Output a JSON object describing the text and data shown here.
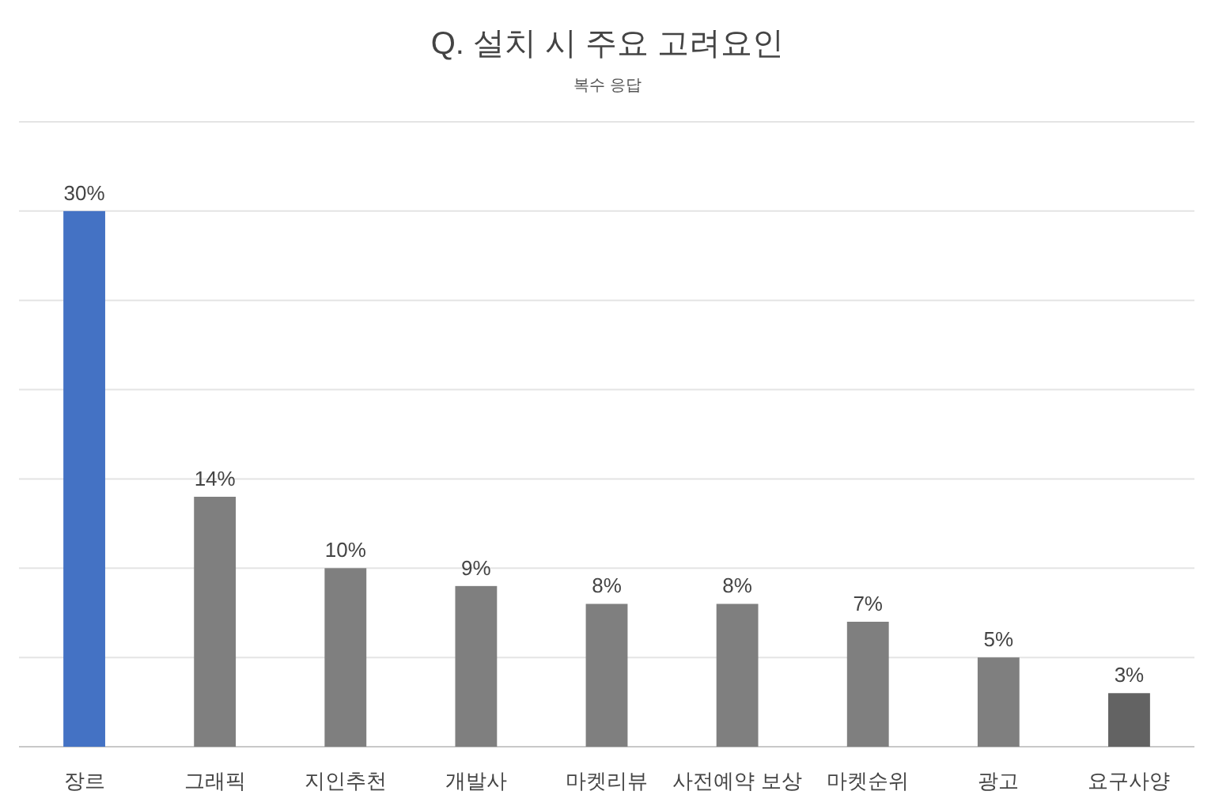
{
  "chart_data": {
    "type": "bar",
    "title": "Q. 설치 시 주요 고려요인",
    "subtitle": "복수 응답",
    "categories": [
      "장르",
      "그래픽",
      "지인추천",
      "개발사",
      "마켓리뷰",
      "사전예약 보상",
      "마켓순위",
      "광고",
      "요구사양"
    ],
    "values": [
      30,
      14,
      10,
      9,
      8,
      8,
      7,
      5,
      3
    ],
    "colors": [
      "#4472c4",
      "#7f7f7f",
      "#7f7f7f",
      "#7f7f7f",
      "#7f7f7f",
      "#7f7f7f",
      "#7f7f7f",
      "#7f7f7f",
      "#636363"
    ],
    "value_labels": [
      "30%",
      "14%",
      "10%",
      "9%",
      "8%",
      "8%",
      "7%",
      "5%",
      "3%"
    ],
    "ylim": [
      0,
      35
    ],
    "yticks": [
      {
        "value": 0,
        "label": null
      },
      {
        "value": 5,
        "label": null
      },
      {
        "value": 10,
        "label": null
      },
      {
        "value": 15,
        "label": null
      },
      {
        "value": 20,
        "label": null
      },
      {
        "value": 25,
        "label": null
      },
      {
        "value": 30,
        "label": null
      },
      {
        "value": 35,
        "label": null
      }
    ],
    "grid": "y",
    "tick_labels": "x"
  }
}
